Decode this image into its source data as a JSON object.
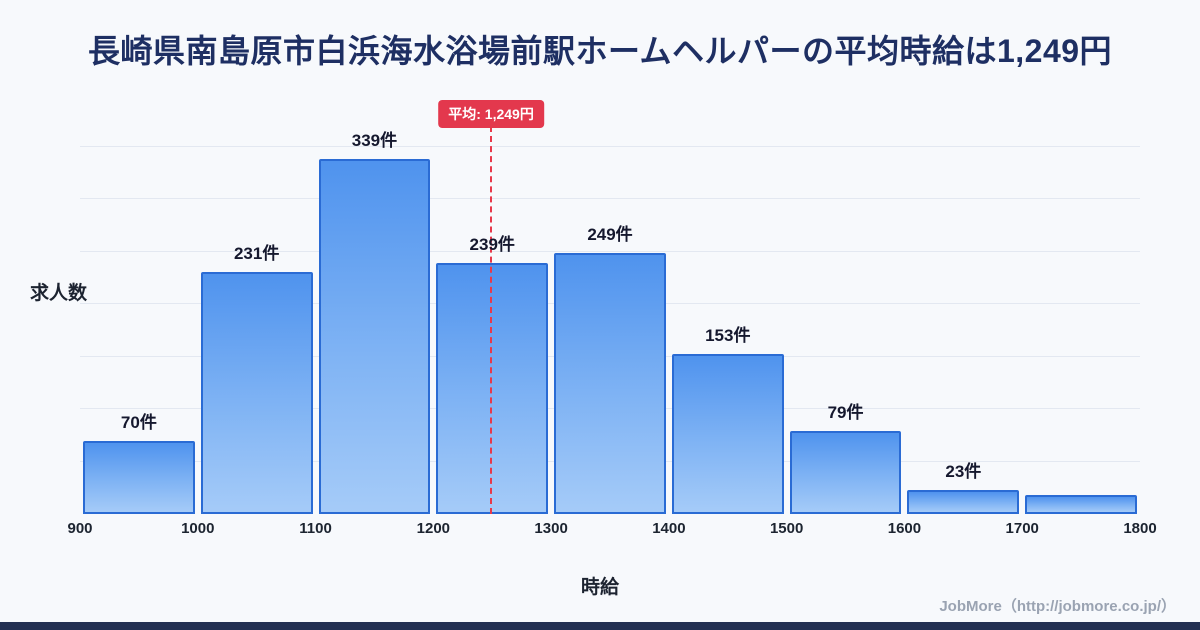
{
  "page": {
    "title": "長崎県南島原市白浜海水浴場前駅ホームヘルパーの平均時給は1,249円",
    "footer": "JobMore（http://jobmore.co.jp/）"
  },
  "chart_data": {
    "type": "bar",
    "title": "長崎県南島原市白浜海水浴場前駅ホームヘルパーの平均時給は1,249円",
    "xlabel": "時給",
    "ylabel": "求人数",
    "x_ticks": [
      900,
      1000,
      1100,
      1200,
      1300,
      1400,
      1500,
      1600,
      1700,
      1800
    ],
    "ylim": [
      0,
      370
    ],
    "grid": true,
    "legend": "none",
    "bins": [
      {
        "range": [
          900,
          1000
        ],
        "value": 70,
        "label": "70件"
      },
      {
        "range": [
          1000,
          1100
        ],
        "value": 231,
        "label": "231件"
      },
      {
        "range": [
          1100,
          1200
        ],
        "value": 339,
        "label": "339件"
      },
      {
        "range": [
          1200,
          1300
        ],
        "value": 239,
        "label": "239件"
      },
      {
        "range": [
          1300,
          1400
        ],
        "value": 249,
        "label": "249件"
      },
      {
        "range": [
          1400,
          1500
        ],
        "value": 153,
        "label": "153件"
      },
      {
        "range": [
          1500,
          1600
        ],
        "value": 79,
        "label": "79件"
      },
      {
        "range": [
          1600,
          1700
        ],
        "value": 23,
        "label": "23件"
      },
      {
        "range": [
          1700,
          1800
        ],
        "value": 18,
        "label": ""
      }
    ],
    "average": {
      "value": 1249,
      "label": "平均: 1,249円"
    },
    "colors": {
      "bar_top": "#4f93ee",
      "bar_bottom": "#a5cbf8",
      "bar_border": "#2a6bd4",
      "average_line": "#e8394a",
      "average_badge_bg": "#e3384d",
      "title_text": "#1e2f63",
      "bottom_bar": "#233052"
    }
  }
}
